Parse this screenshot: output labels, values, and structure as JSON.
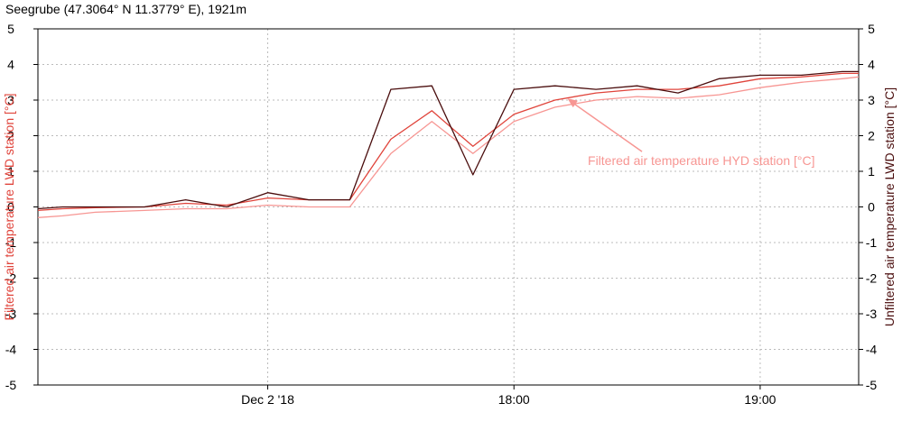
{
  "title": "Seegrube (47.3064° N 11.3779° E), 1921m",
  "chart_data": {
    "type": "line",
    "title": "Seegrube (47.3064° N 11.3779° E), 1921m",
    "ylabel_left": "Filtered air temperature LWD station [°C]",
    "ylabel_right": "Unfiltered air temperature LWD station [°C]",
    "ylim": [
      -5,
      5
    ],
    "yticks": [
      5,
      4,
      3,
      2,
      1,
      0,
      -1,
      -2,
      -3,
      -4,
      -5
    ],
    "xlim": [
      0,
      200
    ],
    "xticks": [
      {
        "x": 56,
        "label": "Dec 2 '18"
      },
      {
        "x": 116,
        "label": "18:00"
      },
      {
        "x": 176,
        "label": "19:00"
      }
    ],
    "grid": true,
    "colors": {
      "filtered_lwd": "#e0443b",
      "unfiltered_lwd": "#4a0d0d",
      "filtered_hyd": "#f79693",
      "axis": "#000000",
      "grid": "#bbbbbb"
    },
    "annotation": {
      "text": "Filtered air temperature HYD station [°C]",
      "color": "#f79693",
      "x": 134,
      "y": 1.3,
      "arrow_to": {
        "x": 129,
        "y": 3.05
      }
    },
    "series": [
      {
        "key": "unfiltered_lwd",
        "x": [
          0,
          6,
          14,
          26,
          36,
          46,
          56,
          66,
          76,
          86,
          96,
          106,
          116,
          126,
          136,
          146,
          156,
          166,
          176,
          186,
          196,
          200
        ],
        "values": [
          -0.05,
          0.0,
          0.0,
          0.0,
          0.2,
          0.0,
          0.4,
          0.2,
          0.2,
          3.3,
          3.4,
          0.9,
          3.3,
          3.4,
          3.3,
          3.4,
          3.2,
          3.6,
          3.7,
          3.7,
          3.8,
          3.8
        ]
      },
      {
        "key": "filtered_lwd",
        "x": [
          0,
          6,
          14,
          26,
          36,
          46,
          56,
          66,
          76,
          86,
          96,
          106,
          116,
          126,
          136,
          146,
          156,
          166,
          176,
          186,
          196,
          200
        ],
        "values": [
          -0.1,
          -0.05,
          -0.02,
          0.0,
          0.1,
          0.05,
          0.25,
          0.2,
          0.2,
          1.9,
          2.7,
          1.7,
          2.6,
          3.0,
          3.2,
          3.3,
          3.3,
          3.4,
          3.6,
          3.65,
          3.75,
          3.75
        ]
      },
      {
        "key": "filtered_hyd",
        "x": [
          0,
          6,
          14,
          26,
          36,
          46,
          56,
          66,
          76,
          86,
          96,
          106,
          116,
          126,
          136,
          146,
          156,
          166,
          176,
          186,
          196,
          200
        ],
        "values": [
          -0.3,
          -0.25,
          -0.15,
          -0.1,
          -0.05,
          -0.05,
          0.05,
          0.0,
          0.0,
          1.5,
          2.4,
          1.5,
          2.4,
          2.8,
          3.0,
          3.1,
          3.05,
          3.15,
          3.35,
          3.5,
          3.6,
          3.65
        ]
      }
    ]
  }
}
